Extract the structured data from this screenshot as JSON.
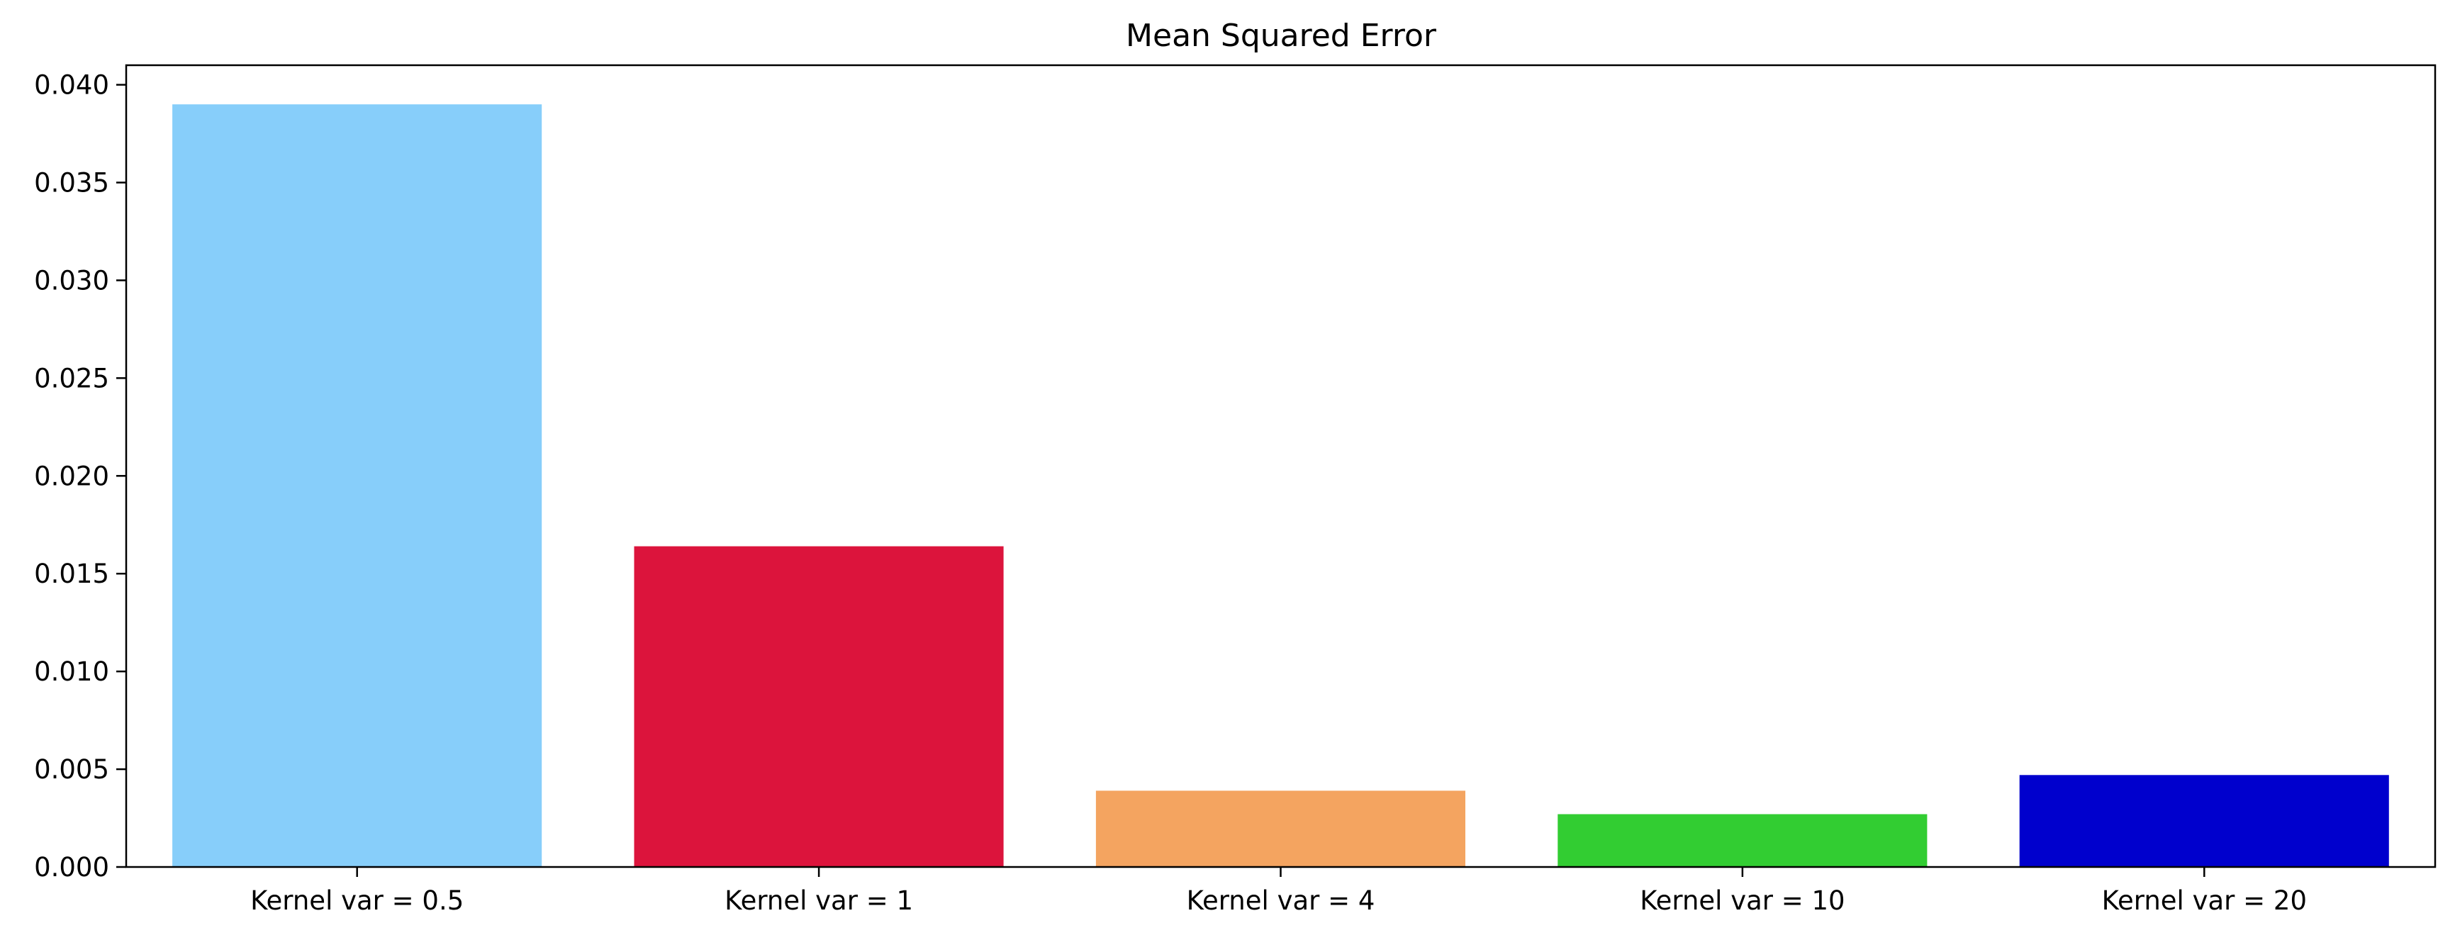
{
  "chart_data": {
    "type": "bar",
    "title": "Mean Squared Error",
    "xlabel": "",
    "ylabel": "",
    "categories": [
      "Kernel var = 0.5",
      "Kernel var = 1",
      "Kernel var = 4",
      "Kernel var = 10",
      "Kernel var = 20"
    ],
    "values": [
      0.039,
      0.0164,
      0.0039,
      0.0027,
      0.0047
    ],
    "colors": [
      "#87CEFA",
      "#DC143C",
      "#F4A460",
      "#32CD32",
      "#0000CD"
    ],
    "ylim": [
      0,
      0.041
    ],
    "yticks": [
      "0.000",
      "0.005",
      "0.010",
      "0.015",
      "0.020",
      "0.025",
      "0.030",
      "0.035",
      "0.040"
    ],
    "grid": false,
    "legend": "none"
  }
}
